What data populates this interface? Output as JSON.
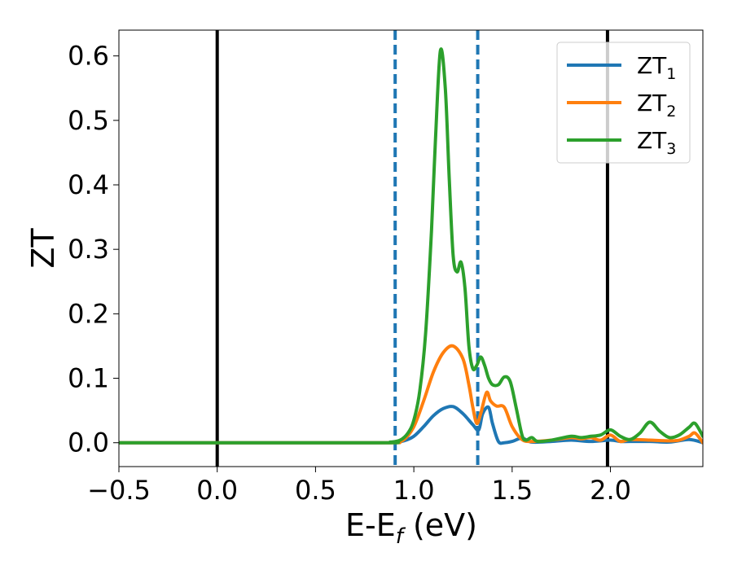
{
  "chart_data": {
    "type": "line",
    "title": "",
    "xlabel": "E-E",
    "xlabel_sub": "f",
    "xlabel_unit": " (eV)",
    "ylabel": "ZT",
    "xlim": [
      -0.5,
      2.47
    ],
    "ylim": [
      -0.037,
      0.64
    ],
    "xticks": [
      -0.5,
      0.0,
      0.5,
      1.0,
      1.5,
      2.0
    ],
    "xtick_labels": [
      "−0.5",
      "0.0",
      "0.5",
      "1.0",
      "1.5",
      "2.0"
    ],
    "yticks": [
      0.0,
      0.1,
      0.2,
      0.3,
      0.4,
      0.5,
      0.6
    ],
    "ytick_labels": [
      "0.0",
      "0.1",
      "0.2",
      "0.3",
      "0.4",
      "0.5",
      "0.6"
    ],
    "grid": false,
    "legend_position": "top-right",
    "reference_lines": [
      {
        "x": 0.0,
        "style": "solid",
        "color": "#000000"
      },
      {
        "x": 1.985,
        "style": "solid",
        "color": "#000000"
      },
      {
        "x": 0.905,
        "style": "dashed",
        "color": "#1f77b4"
      },
      {
        "x": 1.325,
        "style": "dashed",
        "color": "#1f77b4"
      }
    ],
    "series": [
      {
        "name": "ZT",
        "name_sub": "1",
        "color": "#1f77b4",
        "x": [
          -0.5,
          0.8,
          0.9,
          0.95,
          1.0,
          1.05,
          1.1,
          1.15,
          1.2,
          1.25,
          1.3,
          1.33,
          1.35,
          1.38,
          1.4,
          1.43,
          1.46,
          1.5,
          1.55,
          1.6,
          1.7,
          1.8,
          1.9,
          2.0,
          2.05,
          2.1,
          2.2,
          2.3,
          2.4,
          2.47
        ],
        "y": [
          0.0,
          0.0,
          0.001,
          0.003,
          0.01,
          0.025,
          0.042,
          0.053,
          0.056,
          0.045,
          0.028,
          0.02,
          0.045,
          0.055,
          0.03,
          0.002,
          0.0,
          0.002,
          0.007,
          0.001,
          0.002,
          0.004,
          0.002,
          0.004,
          0.002,
          0.002,
          0.002,
          0.001,
          0.005,
          0.0
        ]
      },
      {
        "name": "ZT",
        "name_sub": "2",
        "color": "#ff7f0e",
        "x": [
          -0.5,
          0.8,
          0.9,
          0.95,
          1.0,
          1.05,
          1.1,
          1.15,
          1.2,
          1.25,
          1.28,
          1.3,
          1.32,
          1.34,
          1.37,
          1.39,
          1.42,
          1.46,
          1.5,
          1.55,
          1.6,
          1.7,
          1.8,
          1.85,
          1.9,
          1.95,
          2.0,
          2.05,
          2.1,
          2.2,
          2.3,
          2.35,
          2.4,
          2.43,
          2.47
        ],
        "y": [
          0.0,
          0.0,
          0.001,
          0.005,
          0.025,
          0.065,
          0.11,
          0.14,
          0.15,
          0.13,
          0.09,
          0.055,
          0.03,
          0.045,
          0.078,
          0.065,
          0.057,
          0.055,
          0.025,
          0.005,
          0.002,
          0.004,
          0.008,
          0.006,
          0.008,
          0.004,
          0.012,
          0.002,
          0.005,
          0.004,
          0.003,
          0.004,
          0.01,
          0.015,
          0.0
        ]
      },
      {
        "name": "ZT",
        "name_sub": "3",
        "color": "#2ca02c",
        "x": [
          -0.5,
          0.8,
          0.88,
          0.93,
          0.97,
          1.0,
          1.03,
          1.06,
          1.09,
          1.11,
          1.135,
          1.16,
          1.18,
          1.2,
          1.22,
          1.24,
          1.26,
          1.28,
          1.3,
          1.32,
          1.34,
          1.36,
          1.38,
          1.4,
          1.43,
          1.46,
          1.49,
          1.52,
          1.55,
          1.57,
          1.6,
          1.63,
          1.7,
          1.8,
          1.85,
          1.9,
          1.95,
          2.0,
          2.05,
          2.1,
          2.15,
          2.2,
          2.25,
          2.3,
          2.35,
          2.4,
          2.43,
          2.47
        ],
        "y": [
          0.0,
          0.0,
          0.001,
          0.004,
          0.015,
          0.035,
          0.08,
          0.17,
          0.33,
          0.47,
          0.608,
          0.55,
          0.41,
          0.29,
          0.265,
          0.28,
          0.24,
          0.15,
          0.115,
          0.12,
          0.133,
          0.12,
          0.1,
          0.09,
          0.09,
          0.102,
          0.095,
          0.055,
          0.012,
          0.004,
          0.008,
          0.002,
          0.004,
          0.01,
          0.008,
          0.01,
          0.012,
          0.02,
          0.01,
          0.005,
          0.015,
          0.032,
          0.018,
          0.008,
          0.012,
          0.024,
          0.03,
          0.01
        ]
      }
    ]
  }
}
